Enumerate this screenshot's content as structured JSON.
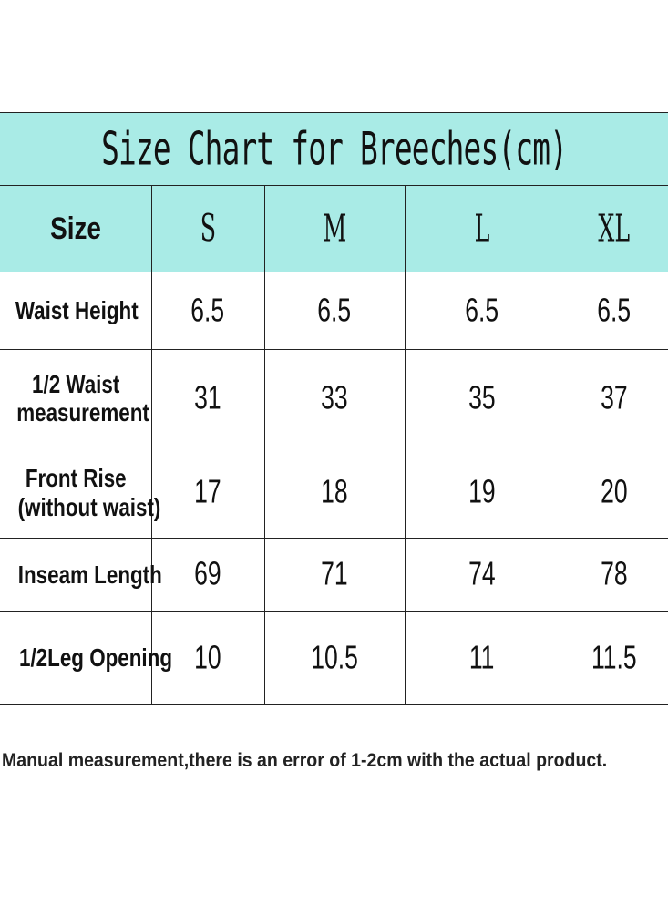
{
  "title": "Size Chart for Breeches(cm)",
  "header": {
    "label": "Size",
    "sizes": [
      "S",
      "M",
      "L",
      "XL"
    ]
  },
  "rows": [
    {
      "label_lines": [
        "Waist Height"
      ],
      "values": [
        "6.5",
        "6.5",
        "6.5",
        "6.5"
      ]
    },
    {
      "label_lines": [
        "1/2 Waist",
        "measurement"
      ],
      "values": [
        "31",
        "33",
        "35",
        "37"
      ]
    },
    {
      "label_lines": [
        "Front Rise",
        "(without waist)"
      ],
      "values": [
        "17",
        "18",
        "19",
        "20"
      ]
    },
    {
      "label_lines": [
        "Inseam Length"
      ],
      "values": [
        "69",
        "71",
        "74",
        "78"
      ]
    },
    {
      "label_lines": [
        "1/2Leg Opening"
      ],
      "values": [
        "10",
        "10.5",
        "11",
        "11.5"
      ]
    }
  ],
  "note": "Manual measurement,there is an error of 1-2cm with the actual product.",
  "colors": {
    "header_background": "#a9ebe6",
    "border": "#222222"
  }
}
